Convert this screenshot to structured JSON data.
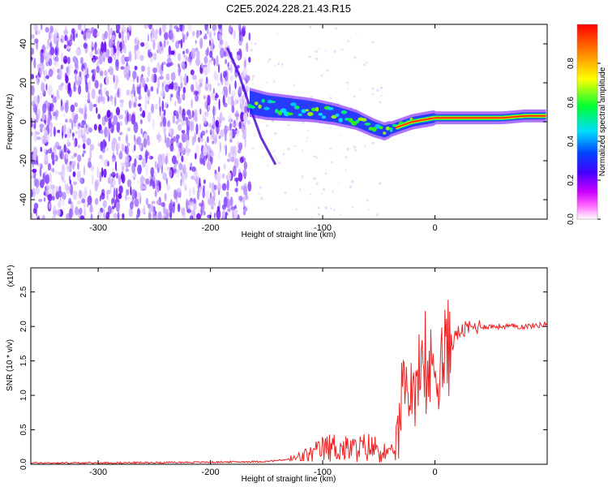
{
  "title": "C2E5.2024.228.21.43.R15",
  "chart_data": [
    {
      "type": "heatmap",
      "xlabel": "Height of straight line (km)",
      "ylabel": "Frequency (Hz)",
      "xlim": [
        -360,
        100
      ],
      "ylim": [
        -50,
        50
      ],
      "xticks": [
        -300,
        -200,
        -100,
        0
      ],
      "yticks": [
        -40,
        -20,
        0,
        20,
        40
      ],
      "colorbar": {
        "label": "Normalized spectral amplitude",
        "range": [
          0,
          1
        ],
        "ticks": [
          "0.0",
          "0.2",
          "0.4",
          "0.6",
          "0.8"
        ],
        "colors": [
          "#ffffff",
          "#ff00ff",
          "#6600ff",
          "#0000ff",
          "#00ffff",
          "#00ff00",
          "#ffff00",
          "#ff8000",
          "#ff0000"
        ]
      },
      "ridge": {
        "x": [
          -165,
          -150,
          -130,
          -110,
          -90,
          -70,
          -55,
          -45,
          -35,
          -20,
          -10,
          0,
          20,
          40,
          60,
          80,
          100
        ],
        "y": [
          10,
          8,
          7,
          6,
          4,
          1,
          -3,
          -5,
          -3,
          0,
          1,
          2,
          2,
          2,
          2,
          3,
          3
        ]
      },
      "noise_region": [
        -360,
        -165
      ],
      "streak": {
        "x": [
          -185,
          -175,
          -165,
          -155,
          -142
        ],
        "y": [
          38,
          25,
          8,
          -8,
          -22
        ]
      }
    },
    {
      "type": "line",
      "xlabel": "Height of straight line (km)",
      "ylabel": "SNR (10 * v/v)",
      "ymultiplier": "(x10⁴)",
      "xlim": [
        -360,
        100
      ],
      "ylim": [
        0,
        2.85
      ],
      "xticks": [
        -300,
        -200,
        -100,
        0
      ],
      "yticks": [
        "0.0",
        "0.5",
        "1.0",
        "1.5",
        "2.0",
        "2.5"
      ],
      "series": [
        {
          "color": "#ee2222",
          "x": [
            -360,
            -300,
            -200,
            -150,
            -125,
            -110,
            -100,
            -90,
            -80,
            -70,
            -60,
            -50,
            -45,
            -40,
            -35,
            -32,
            -30,
            -28,
            -25,
            -20,
            -15,
            -10,
            -5,
            0,
            5,
            10,
            15,
            20,
            30,
            40,
            60,
            80,
            95,
            100
          ],
          "y": [
            0.02,
            0.02,
            0.03,
            0.04,
            0.08,
            0.15,
            0.22,
            0.25,
            0.22,
            0.22,
            0.25,
            0.22,
            0.18,
            0.12,
            0.25,
            0.5,
            0.9,
            1.0,
            1.1,
            1.15,
            1.2,
            1.25,
            1.3,
            1.45,
            1.5,
            1.6,
            1.75,
            1.9,
            1.98,
            2.0,
            2.0,
            2.0,
            2.02,
            2.05
          ]
        }
      ]
    }
  ]
}
